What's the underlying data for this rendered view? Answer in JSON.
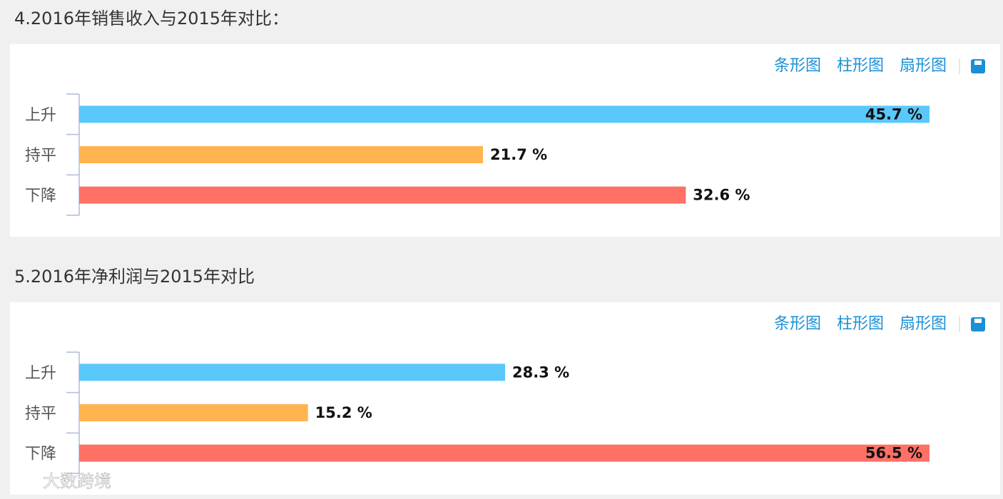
{
  "chart_data": [
    {
      "type": "bar",
      "title": "4.2016年销售收入与2015年对比：",
      "toolbar": [
        "条形图",
        "柱形图",
        "扇形图"
      ],
      "categories": [
        "上升",
        "持平",
        "下降"
      ],
      "values": [
        45.7,
        21.7,
        32.6
      ],
      "value_labels": [
        "45.7 %",
        "21.7 %",
        "32.6 %"
      ],
      "colors": [
        "#5ac8fa",
        "#ffb44f",
        "#ff7066"
      ]
    },
    {
      "type": "bar",
      "title": "5.2016年净利润与2015年对比",
      "toolbar": [
        "条形图",
        "柱形图",
        "扇形图"
      ],
      "categories": [
        "上升",
        "持平",
        "下降"
      ],
      "values": [
        28.3,
        15.2,
        56.5
      ],
      "value_labels": [
        "28.3 %",
        "15.2 %",
        "56.5 %"
      ],
      "colors": [
        "#5ac8fa",
        "#ffb44f",
        "#ff7066"
      ]
    }
  ],
  "watermark": "大数跨境"
}
